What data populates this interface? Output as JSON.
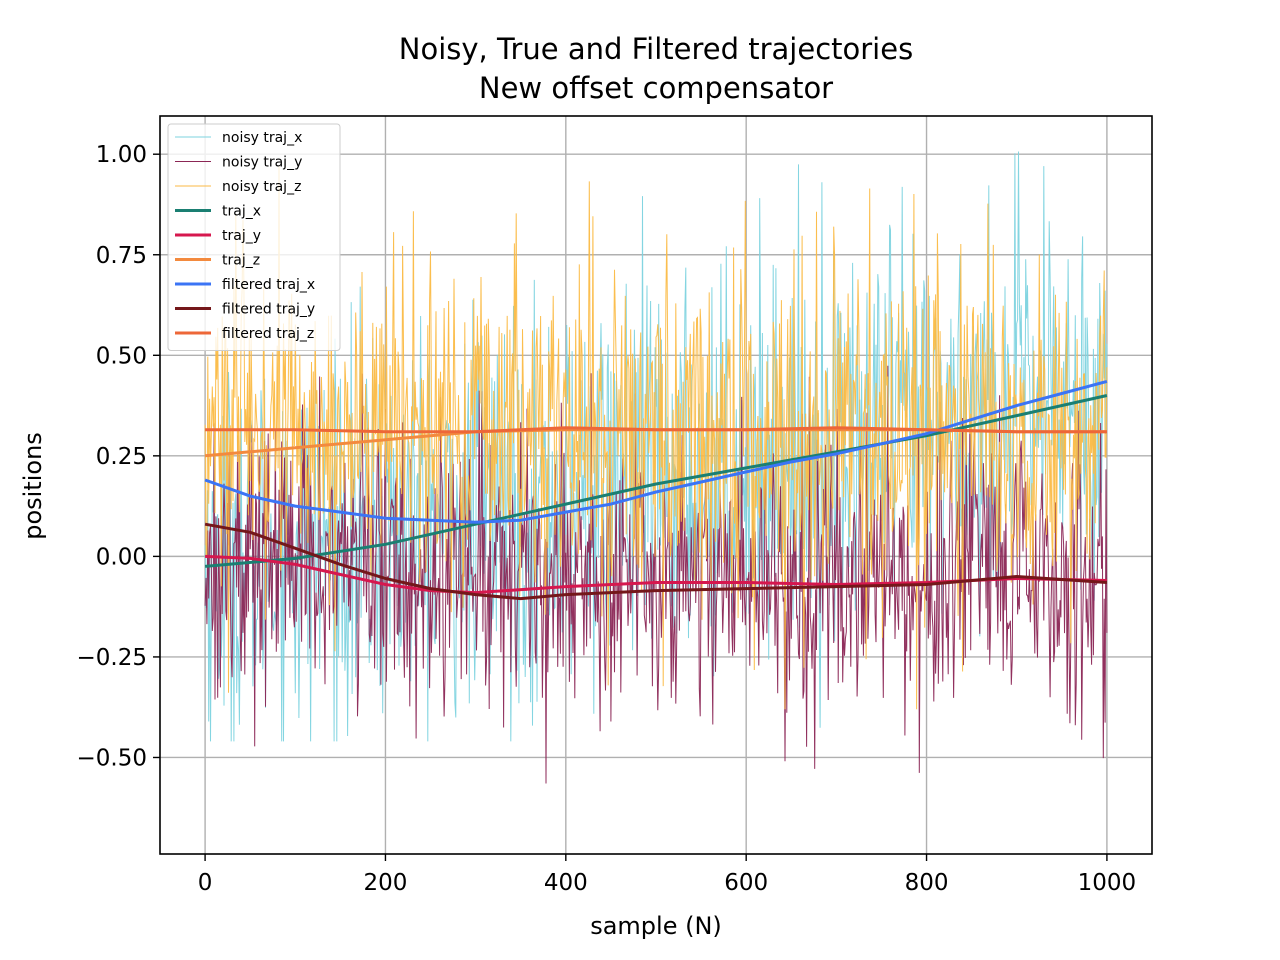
{
  "chart_data": {
    "type": "line",
    "title": "Noisy, True and Filtered trajectories",
    "subtitle": "New offset compensator",
    "xlabel": "sample (N)",
    "ylabel": "positions",
    "xlim": [
      -50,
      1050
    ],
    "ylim": [
      -0.74,
      1.095
    ],
    "xticks": [
      0,
      200,
      400,
      600,
      800,
      1000
    ],
    "yticks": [
      1.0,
      0.75,
      0.5,
      0.25,
      0.0,
      -0.25,
      -0.5
    ],
    "xtick_labels": [
      "0",
      "200",
      "400",
      "600",
      "800",
      "1000"
    ],
    "ytick_labels": [
      "1.00",
      "0.75",
      "0.50",
      "0.25",
      "0.00",
      "−0.25",
      "−0.50"
    ],
    "grid": true,
    "legend_position": "upper left",
    "noisy_series": [
      {
        "name": "noisy traj_x",
        "color": "#7dd3df",
        "center_x": [
          0,
          1000
        ],
        "center_y": [
          -0.025,
          0.4
        ],
        "amplitude": 0.3,
        "approx_min": -0.46,
        "approx_max": 1.01
      },
      {
        "name": "noisy traj_y",
        "color": "#8b2655",
        "center_x": [
          0,
          1000
        ],
        "center_y": [
          0.0,
          -0.06
        ],
        "amplitude": 0.22,
        "approx_min": -0.67,
        "approx_max": 0.56
      },
      {
        "name": "noisy traj_z",
        "color": "#fbba44",
        "center_x": [
          0,
          1000
        ],
        "center_y": [
          0.31,
          0.31
        ],
        "amplitude": 0.26,
        "approx_min": -0.38,
        "approx_max": 0.97
      }
    ],
    "series": [
      {
        "name": "traj_x",
        "color": "#1a7f72",
        "x": [
          0,
          100,
          200,
          300,
          400,
          500,
          600,
          700,
          800,
          900,
          1000
        ],
        "y": [
          -0.025,
          -0.005,
          0.03,
          0.08,
          0.13,
          0.18,
          0.22,
          0.26,
          0.3,
          0.35,
          0.4
        ]
      },
      {
        "name": "traj_y",
        "color": "#d6174e",
        "x": [
          0,
          50,
          100,
          150,
          200,
          250,
          300,
          400,
          500,
          600,
          700,
          800,
          900,
          1000
        ],
        "y": [
          0.0,
          -0.005,
          -0.02,
          -0.045,
          -0.07,
          -0.085,
          -0.09,
          -0.075,
          -0.065,
          -0.065,
          -0.07,
          -0.065,
          -0.055,
          -0.06
        ]
      },
      {
        "name": "traj_z",
        "color": "#f38a3e",
        "x": [
          0,
          50,
          100,
          150,
          200,
          300,
          400,
          500,
          600,
          700,
          800,
          900,
          1000
        ],
        "y": [
          0.25,
          0.26,
          0.27,
          0.28,
          0.29,
          0.31,
          0.315,
          0.315,
          0.315,
          0.315,
          0.315,
          0.31,
          0.31
        ]
      },
      {
        "name": "filtered traj_x",
        "color": "#3b74f5",
        "x": [
          0,
          50,
          100,
          150,
          200,
          250,
          300,
          350,
          400,
          450,
          500,
          550,
          600,
          650,
          700,
          750,
          800,
          850,
          900,
          950,
          1000
        ],
        "y": [
          0.19,
          0.15,
          0.125,
          0.11,
          0.095,
          0.09,
          0.085,
          0.09,
          0.11,
          0.13,
          0.16,
          0.185,
          0.21,
          0.235,
          0.255,
          0.28,
          0.305,
          0.34,
          0.375,
          0.405,
          0.435
        ]
      },
      {
        "name": "filtered traj_y",
        "color": "#74171a",
        "x": [
          0,
          50,
          100,
          150,
          200,
          250,
          300,
          350,
          400,
          450,
          500,
          600,
          700,
          800,
          900,
          1000
        ],
        "y": [
          0.08,
          0.06,
          0.02,
          -0.02,
          -0.055,
          -0.08,
          -0.095,
          -0.105,
          -0.095,
          -0.09,
          -0.085,
          -0.08,
          -0.075,
          -0.07,
          -0.05,
          -0.065
        ]
      },
      {
        "name": "filtered traj_z",
        "color": "#ed6738",
        "x": [
          0,
          100,
          200,
          300,
          350,
          400,
          500,
          600,
          700,
          800,
          900,
          1000
        ],
        "y": [
          0.315,
          0.315,
          0.31,
          0.31,
          0.315,
          0.32,
          0.315,
          0.315,
          0.32,
          0.315,
          0.31,
          0.31
        ]
      }
    ],
    "legend": [
      "noisy traj_x",
      "noisy traj_y",
      "noisy traj_z",
      "traj_x",
      "traj_y",
      "traj_z",
      "filtered traj_x",
      "filtered traj_y",
      "filtered traj_z"
    ]
  }
}
